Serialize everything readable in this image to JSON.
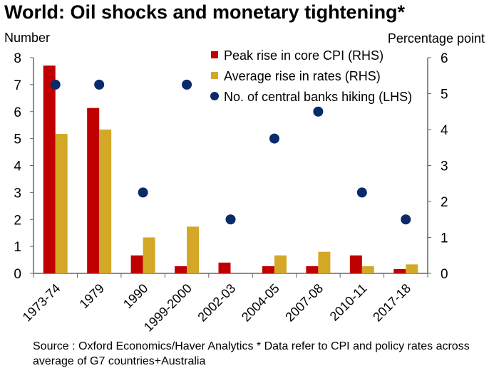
{
  "chart_data": {
    "type": "bar",
    "title": "World: Oil shocks and monetary tightening*",
    "ylabel_left": "Number",
    "ylabel_right": "Percentage point",
    "ylim_left": [
      0,
      8
    ],
    "ylim_right": [
      0,
      6
    ],
    "yticks_left": [
      "0",
      "1",
      "2",
      "3",
      "4",
      "5",
      "6",
      "7",
      "8"
    ],
    "yticks_right": [
      "0",
      "1",
      "2",
      "3",
      "4",
      "5",
      "6"
    ],
    "categories": [
      "1973-74",
      "1979",
      "1990",
      "1999-2000",
      "2002-03",
      "2004-05",
      "2007-08",
      "2010-11",
      "2017-18"
    ],
    "series": [
      {
        "name": "Peak rise in core CPI (RHS)",
        "type": "bar",
        "axis": "right",
        "color": "#c00000",
        "values": [
          5.78,
          4.6,
          0.5,
          0.2,
          0.3,
          0.2,
          0.2,
          0.5,
          0.12
        ]
      },
      {
        "name": "Average rise in rates (RHS)",
        "type": "bar",
        "axis": "right",
        "color": "#d4a827",
        "values": [
          3.88,
          4.0,
          1.0,
          1.3,
          0,
          0.5,
          0.6,
          0.2,
          0.25
        ]
      },
      {
        "name": "No. of central banks hiking (LHS)",
        "type": "scatter",
        "axis": "left",
        "color": "#0b2a6b",
        "values": [
          7,
          7,
          3,
          7,
          2,
          5,
          6,
          3,
          2
        ]
      }
    ],
    "legend": "top-right",
    "grid": false
  },
  "source": "Source : Oxford Economics/Haver Analytics * Data refer to CPI and policy rates across average of G7 countries+Australia"
}
